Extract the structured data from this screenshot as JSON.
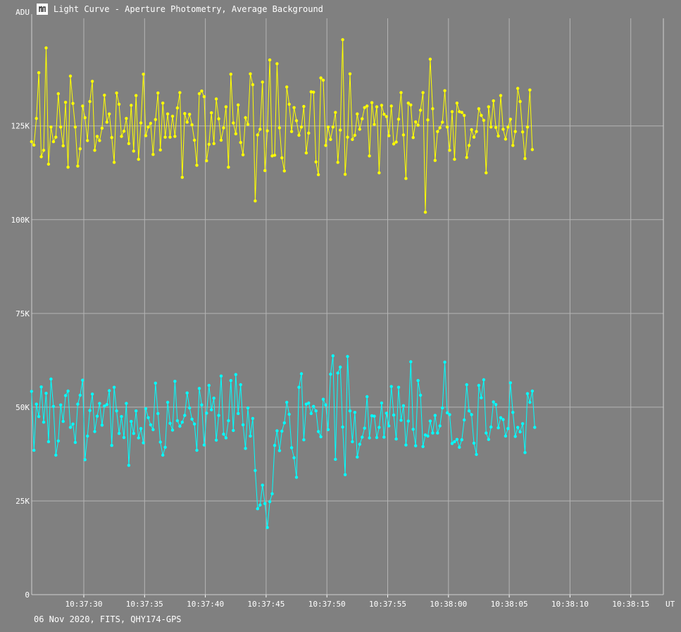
{
  "window": {
    "title": "Light Curve - Aperture Photometry, Average Background",
    "footer": "06 Nov 2020, FITS, QHY174-GPS"
  },
  "chart_data": {
    "type": "line",
    "ylabel": "ADU",
    "xlabel": "UT",
    "y_ticks": [
      {
        "value": 0,
        "label": "0"
      },
      {
        "value": 25000,
        "label": "25K"
      },
      {
        "value": 50000,
        "label": "50K"
      },
      {
        "value": 75000,
        "label": "75K"
      },
      {
        "value": 100000,
        "label": "100K"
      },
      {
        "value": 125000,
        "label": "125K"
      }
    ],
    "x_ticks": [
      "10:37:30",
      "10:37:35",
      "10:37:40",
      "10:37:45",
      "10:37:50",
      "10:37:55",
      "10:38:00",
      "10:38:05",
      "10:38:10",
      "10:38:15"
    ],
    "ylim": [
      0,
      153700
    ],
    "x_start_time": "10:37:25.7",
    "x_end_time": "10:38:17.6",
    "x_step_seconds": 0.2,
    "grid": true,
    "series": [
      {
        "color": "#ffff00",
        "values": [
          120800,
          119900,
          127000,
          139200,
          116800,
          118500,
          145800,
          114800,
          124700,
          120800,
          122000,
          133600,
          124700,
          119700,
          131300,
          114000,
          138300,
          131000,
          124700,
          114300,
          118900,
          130300,
          127200,
          121100,
          131500,
          136900,
          118500,
          122200,
          121100,
          124400,
          133200,
          126000,
          128200,
          121900,
          115300,
          133800,
          130800,
          122200,
          123600,
          127000,
          120300,
          130500,
          118300,
          133100,
          116100,
          125800,
          138800,
          122400,
          124700,
          125700,
          117400,
          126700,
          133800,
          118600,
          131100,
          122000,
          128200,
          122000,
          127600,
          122200,
          129800,
          133900,
          111300,
          128300,
          126000,
          128100,
          125300,
          121200,
          114500,
          133600,
          134300,
          132800,
          115700,
          120100,
          128500,
          120300,
          132200,
          126900,
          121200,
          124500,
          130100,
          114000,
          138800,
          125800,
          122900,
          130600,
          120600,
          117300,
          127200,
          125400,
          138900,
          136000,
          105000,
          122600,
          124100,
          136700,
          113100,
          123700,
          142600,
          117000,
          117200,
          141600,
          124500,
          116500,
          113000,
          135400,
          130800,
          123500,
          129900,
          126400,
          122500,
          124700,
          130200,
          117800,
          123100,
          134100,
          134000,
          115400,
          112000,
          137800,
          137200,
          119800,
          124700,
          121400,
          124700,
          128600,
          115300,
          123900,
          148000,
          112100,
          122000,
          138900,
          121400,
          122500,
          128200,
          124100,
          126900,
          129900,
          130300,
          117000,
          131200,
          125400,
          130100,
          112500,
          130500,
          128100,
          127500,
          122400,
          130300,
          120200,
          120700,
          126800,
          133900,
          122600,
          111000,
          131100,
          130600,
          121900,
          126100,
          125200,
          129200,
          133900,
          102000,
          126600,
          142800,
          129600,
          115800,
          123500,
          124500,
          126000,
          134400,
          124700,
          118500,
          128800,
          116100,
          131100,
          128800,
          128600,
          127800,
          116600,
          119800,
          124000,
          122000,
          123500,
          129600,
          127800,
          126500,
          112500,
          130100,
          124700,
          131700,
          124600,
          122300,
          133100,
          124100,
          121500,
          124700,
          126800,
          119800,
          123500,
          135000,
          131500,
          123400,
          116300,
          124700,
          134600,
          118700
        ]
      },
      {
        "color": "#00ffff",
        "values": [
          54200,
          38500,
          50800,
          47500,
          55400,
          46000,
          53700,
          40800,
          57500,
          50200,
          37200,
          41000,
          50600,
          46200,
          53100,
          54300,
          44600,
          45500,
          40600,
          50800,
          53200,
          57200,
          36000,
          42300,
          49100,
          53500,
          43500,
          47600,
          51000,
          45200,
          50300,
          50700,
          54400,
          39800,
          55300,
          49000,
          43000,
          47500,
          41900,
          51000,
          34500,
          46200,
          43000,
          49000,
          41800,
          44300,
          40500,
          49600,
          47200,
          45300,
          44000,
          56400,
          48300,
          40700,
          37200,
          39300,
          51300,
          45700,
          43900,
          56900,
          46400,
          44900,
          46000,
          47800,
          53800,
          49800,
          46800,
          45500,
          38500,
          55000,
          50600,
          39900,
          48400,
          55800,
          49300,
          52400,
          41200,
          47800,
          58300,
          42800,
          41800,
          46400,
          57100,
          43800,
          58700,
          48300,
          56000,
          45300,
          39000,
          49800,
          42300,
          47000,
          33100,
          22900,
          23900,
          29200,
          24300,
          17900,
          24800,
          26900,
          39800,
          43700,
          38400,
          43600,
          45800,
          51300,
          48100,
          39200,
          36500,
          31300,
          55300,
          58900,
          41300,
          50800,
          51100,
          48300,
          50200,
          49000,
          43500,
          42100,
          52100,
          50600,
          44000,
          58800,
          63700,
          36100,
          59100,
          60700,
          44700,
          32000,
          63500,
          49000,
          40800,
          48600,
          36700,
          40100,
          42000,
          44400,
          52800,
          41800,
          47700,
          47600,
          41900,
          44600,
          51100,
          42000,
          48400,
          45000,
          55500,
          47900,
          41500,
          55300,
          46500,
          50400,
          39900,
          46300,
          62100,
          44100,
          39700,
          57100,
          53200,
          39500,
          42600,
          42300,
          46300,
          43100,
          47800,
          43100,
          45000,
          49800,
          62000,
          48500,
          48000,
          40300,
          40800,
          41400,
          39300,
          41300,
          46600,
          56000,
          49000,
          48000,
          40400,
          37400,
          55800,
          52500,
          57300,
          43100,
          41400,
          44700,
          51400,
          50700,
          44500,
          47200,
          46700,
          42300,
          44300,
          56500,
          48600,
          42200,
          44600,
          43400,
          45600,
          37900,
          53600,
          51300,
          54300,
          44600
        ]
      }
    ]
  }
}
